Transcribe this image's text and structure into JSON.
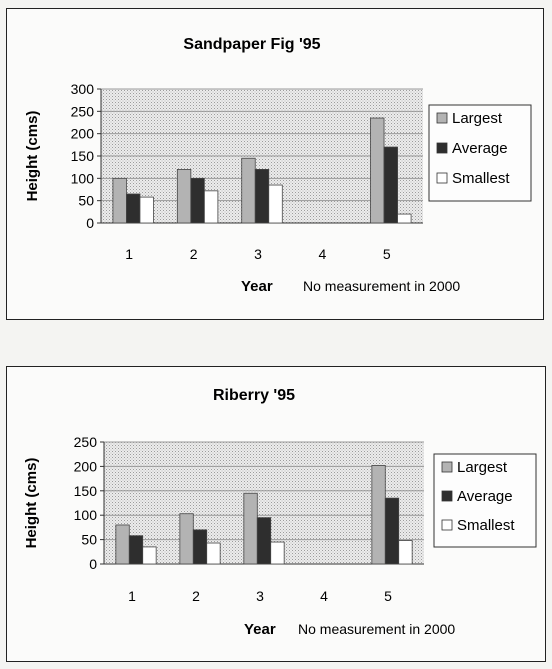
{
  "charts": [
    {
      "type": "bar",
      "title": "Sandpaper Fig '95",
      "ylabel": "Height (cms)",
      "xlabel": "Year",
      "note": "No measurement in 2000",
      "ylim": [
        0,
        300
      ],
      "yticks": [
        0,
        50,
        100,
        150,
        200,
        250,
        300
      ],
      "categories": [
        "1",
        "2",
        "3",
        "4",
        "5"
      ],
      "legend_position": "right",
      "grid": true,
      "series": [
        {
          "name": "Largest",
          "values": [
            100,
            120,
            145,
            null,
            235
          ]
        },
        {
          "name": "Average",
          "values": [
            65,
            100,
            120,
            null,
            170
          ]
        },
        {
          "name": "Smallest",
          "values": [
            58,
            72,
            85,
            null,
            20
          ]
        }
      ]
    },
    {
      "type": "bar",
      "title": "Riberry '95",
      "ylabel": "Height (cms)",
      "xlabel": "Year",
      "note": "No measurement in 2000",
      "ylim": [
        0,
        250
      ],
      "yticks": [
        0,
        50,
        100,
        150,
        200,
        250
      ],
      "categories": [
        "1",
        "2",
        "3",
        "4",
        "5"
      ],
      "legend_position": "right",
      "grid": true,
      "series": [
        {
          "name": "Largest",
          "values": [
            80,
            103,
            145,
            null,
            202
          ]
        },
        {
          "name": "Average",
          "values": [
            58,
            70,
            95,
            null,
            135
          ]
        },
        {
          "name": "Smallest",
          "values": [
            35,
            43,
            45,
            null,
            48
          ]
        }
      ]
    }
  ],
  "series_style": {
    "fills": [
      "#b3b3b3",
      "#2e2e2e",
      "#ffffff"
    ],
    "plot_bg": "#dedede",
    "grid_color": "#9a9a9a"
  }
}
